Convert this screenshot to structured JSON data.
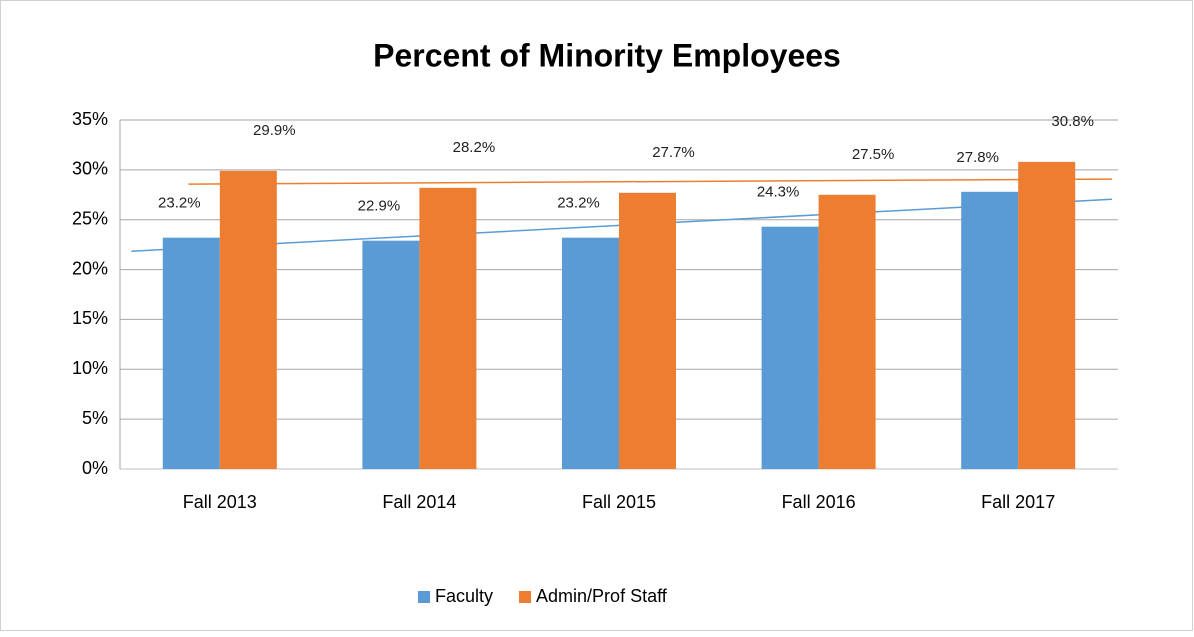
{
  "chart_data": {
    "type": "bar",
    "title": "Percent of Minority Employees",
    "categories": [
      "Fall 2013",
      "Fall 2014",
      "Fall 2015",
      "Fall 2016",
      "Fall 2017"
    ],
    "series": [
      {
        "name": "Faculty",
        "color": "#5b9bd5",
        "values": [
          23.2,
          22.9,
          23.2,
          24.3,
          27.8
        ],
        "value_labels": [
          "23.2%",
          "22.9%",
          "23.2%",
          "24.3%",
          "27.8%"
        ]
      },
      {
        "name": "Admin/Prof Staff",
        "color": "#ed7d31",
        "values": [
          29.9,
          28.2,
          27.7,
          27.5,
          30.8
        ],
        "value_labels": [
          "29.9%",
          "28.2%",
          "27.7%",
          "27.5%",
          "30.8%"
        ]
      }
    ],
    "ylim": [
      0,
      35
    ],
    "yticks": [
      {
        "value": 0,
        "label": "0%"
      },
      {
        "value": 5,
        "label": "5%"
      },
      {
        "value": 10,
        "label": "10%"
      },
      {
        "value": 15,
        "label": "15%"
      },
      {
        "value": 20,
        "label": "20%"
      },
      {
        "value": 25,
        "label": "25%"
      },
      {
        "value": 30,
        "label": "30%"
      },
      {
        "value": 35,
        "label": "35%"
      }
    ],
    "grid": true,
    "trendline": true,
    "legend": "bottom"
  }
}
